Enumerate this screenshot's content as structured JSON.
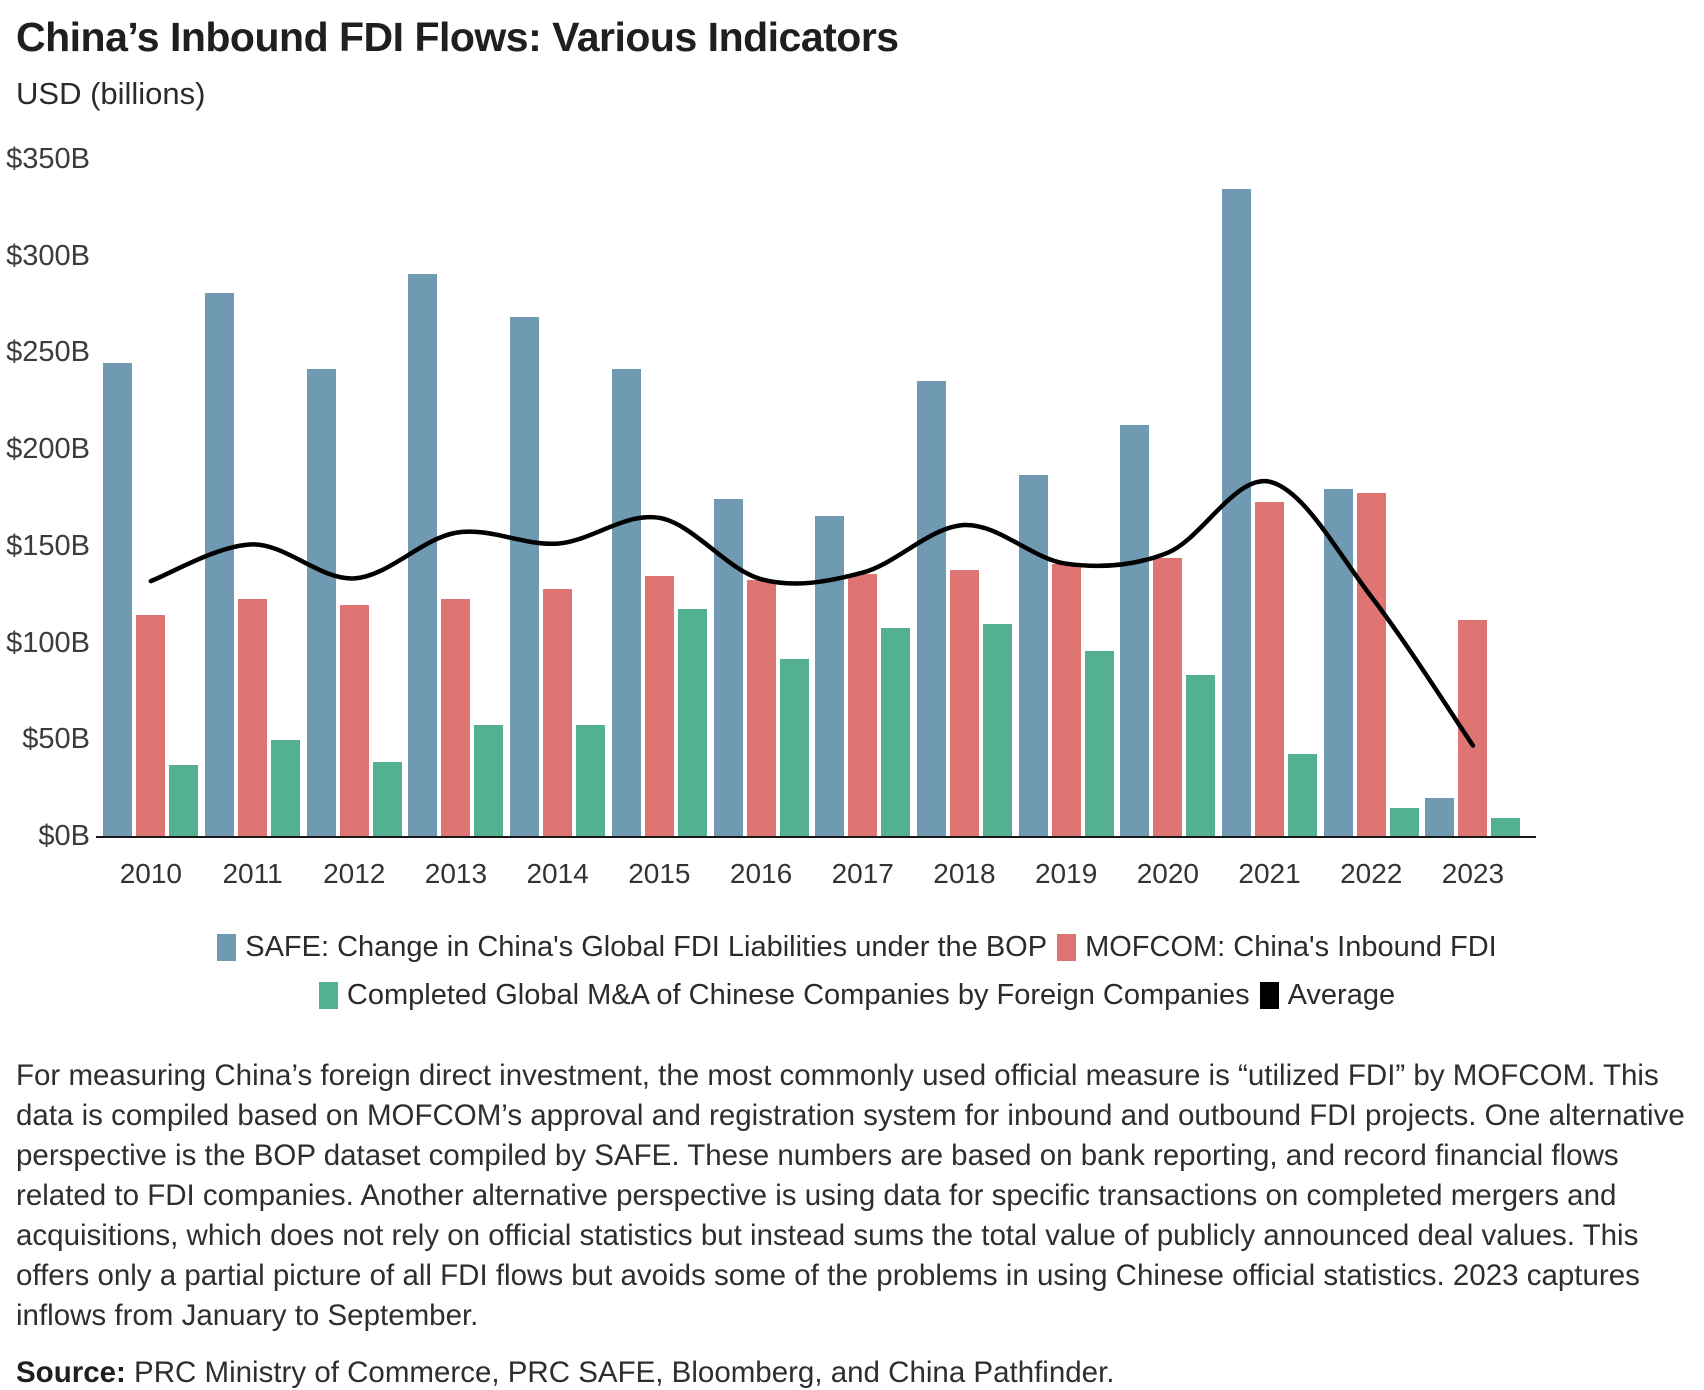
{
  "title": "China’s Inbound FDI Flows: Various Indicators",
  "subtitle": "USD (billions)",
  "chart_data": {
    "type": "bar",
    "categories": [
      "2010",
      "2011",
      "2012",
      "2013",
      "2014",
      "2015",
      "2016",
      "2017",
      "2018",
      "2019",
      "2020",
      "2021",
      "2022",
      "2023"
    ],
    "series": [
      {
        "id": "safe",
        "name": "SAFE: Change in China's Global FDI Liabilities under the BOP",
        "color": "#6F9AB1",
        "values": [
          245,
          281,
          242,
          291,
          269,
          242,
          175,
          166,
          236,
          187,
          213,
          335,
          180,
          20
        ]
      },
      {
        "id": "mofcom",
        "name": "MOFCOM: China's Inbound FDI",
        "color": "#DE7572",
        "values": [
          115,
          123,
          120,
          123,
          128,
          135,
          133,
          136,
          138,
          141,
          144,
          173,
          178,
          112
        ]
      },
      {
        "id": "ma",
        "name": "Completed Global M&A of Chinese Companies by Foreign Companies",
        "color": "#53B192",
        "values": [
          37,
          50,
          39,
          58,
          58,
          118,
          92,
          108,
          110,
          96,
          84,
          43,
          15,
          10
        ]
      }
    ],
    "line_series": {
      "id": "average",
      "name": "Average",
      "color": "#000000",
      "values": [
        132.3,
        151.3,
        133.7,
        157.3,
        151.7,
        165.0,
        133.3,
        136.7,
        161.3,
        141.3,
        147.0,
        183.7,
        124.3,
        47.3
      ]
    },
    "ylabel": "USD (billions)",
    "ylim": [
      0,
      350
    ],
    "y_ticks": [
      {
        "label": "$0B",
        "value": 0
      },
      {
        "label": "$50B",
        "value": 50
      },
      {
        "label": "$100B",
        "value": 100
      },
      {
        "label": "$150B",
        "value": 150
      },
      {
        "label": "$200B",
        "value": 200
      },
      {
        "label": "$250B",
        "value": 250
      },
      {
        "label": "$300B",
        "value": 300
      },
      {
        "label": "$350B",
        "value": 350
      }
    ],
    "grid": false,
    "legend_position": "bottom-center"
  },
  "legend": {
    "rows": [
      [
        {
          "color": "#6F9AB1",
          "label": "SAFE: Change in China's Global FDI Liabilities under the BOP"
        },
        {
          "color": "#DE7572",
          "label": "MOFCOM: China's Inbound FDI"
        }
      ],
      [
        {
          "color": "#53B192",
          "label": "Completed Global M&A of Chinese Companies by Foreign Companies"
        },
        {
          "color": "#000000",
          "label": "Average"
        }
      ]
    ]
  },
  "notes": {
    "paragraph": "For measuring China’s foreign direct investment, the most commonly used official measure is “utilized FDI” by MOFCOM. This data is compiled based on MOFCOM’s approval and registration system for inbound and outbound FDI projects. One alternative perspective is the BOP dataset compiled by SAFE. These numbers are based on bank reporting, and record financial flows related to FDI companies. Another alternative perspective is using data for specific transactions on completed mergers and acquisitions, which does not rely on official statistics but instead sums the total value of publicly announced deal values. This offers only a partial picture of all FDI flows but avoids some of the problems in using Chinese official statistics. 2023 captures inflows from January to September.",
    "source_label": "Source:",
    "source_text": " PRC Ministry of Commerce, PRC SAFE, Bloomberg, and China Pathfinder."
  }
}
